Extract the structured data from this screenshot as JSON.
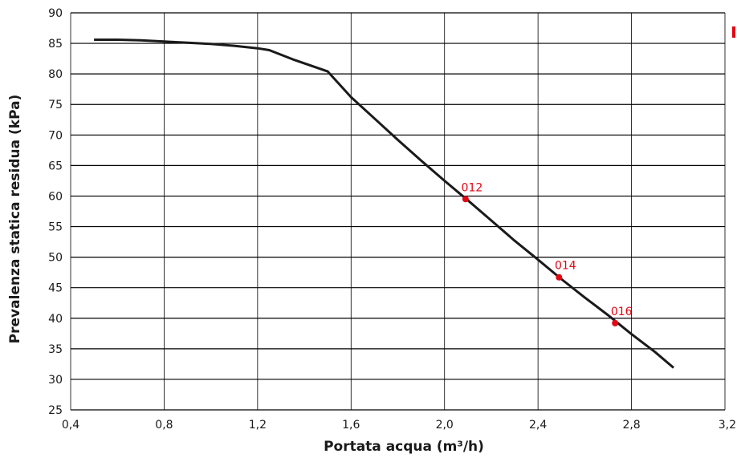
{
  "chart_data": {
    "type": "line",
    "xlabel": "Portata acqua (m³/h)",
    "ylabel": "Prevalenza statica residua (kPa)",
    "xlim": [
      0.4,
      3.2
    ],
    "ylim": [
      25,
      90
    ],
    "x_ticks": [
      "0,4",
      "0,8",
      "1,2",
      "1,6",
      "2,0",
      "2,4",
      "2,8",
      "3,2"
    ],
    "y_ticks": [
      "25",
      "30",
      "35",
      "40",
      "45",
      "50",
      "55",
      "60",
      "65",
      "70",
      "75",
      "80",
      "85",
      "90"
    ],
    "grid": true,
    "series": [
      {
        "color": "#1a1a1a",
        "points": [
          [
            0.5,
            85.6
          ],
          [
            0.6,
            85.6
          ],
          [
            0.7,
            85.5
          ],
          [
            0.8,
            85.3
          ],
          [
            0.9,
            85.1
          ],
          [
            1.0,
            84.9
          ],
          [
            1.1,
            84.6
          ],
          [
            1.2,
            84.2
          ],
          [
            1.25,
            83.9
          ],
          [
            1.35,
            82.4
          ],
          [
            1.5,
            80.4
          ],
          [
            1.6,
            76.2
          ],
          [
            1.7,
            72.7
          ],
          [
            1.8,
            69.2
          ],
          [
            1.9,
            65.8
          ],
          [
            2.0,
            62.5
          ],
          [
            2.1,
            59.3
          ],
          [
            2.2,
            56.0
          ],
          [
            2.3,
            52.7
          ],
          [
            2.4,
            49.6
          ],
          [
            2.5,
            46.4
          ],
          [
            2.6,
            43.4
          ],
          [
            2.7,
            40.5
          ],
          [
            2.8,
            37.4
          ],
          [
            2.9,
            34.5
          ],
          [
            2.98,
            31.9
          ]
        ]
      }
    ],
    "annotations": [
      {
        "label": "012",
        "x": 2.09,
        "y": 59.5,
        "color": "#e30613"
      },
      {
        "label": "014",
        "x": 2.49,
        "y": 46.7,
        "color": "#e30613"
      },
      {
        "label": "016",
        "x": 2.73,
        "y": 39.2,
        "color": "#e30613"
      }
    ]
  }
}
